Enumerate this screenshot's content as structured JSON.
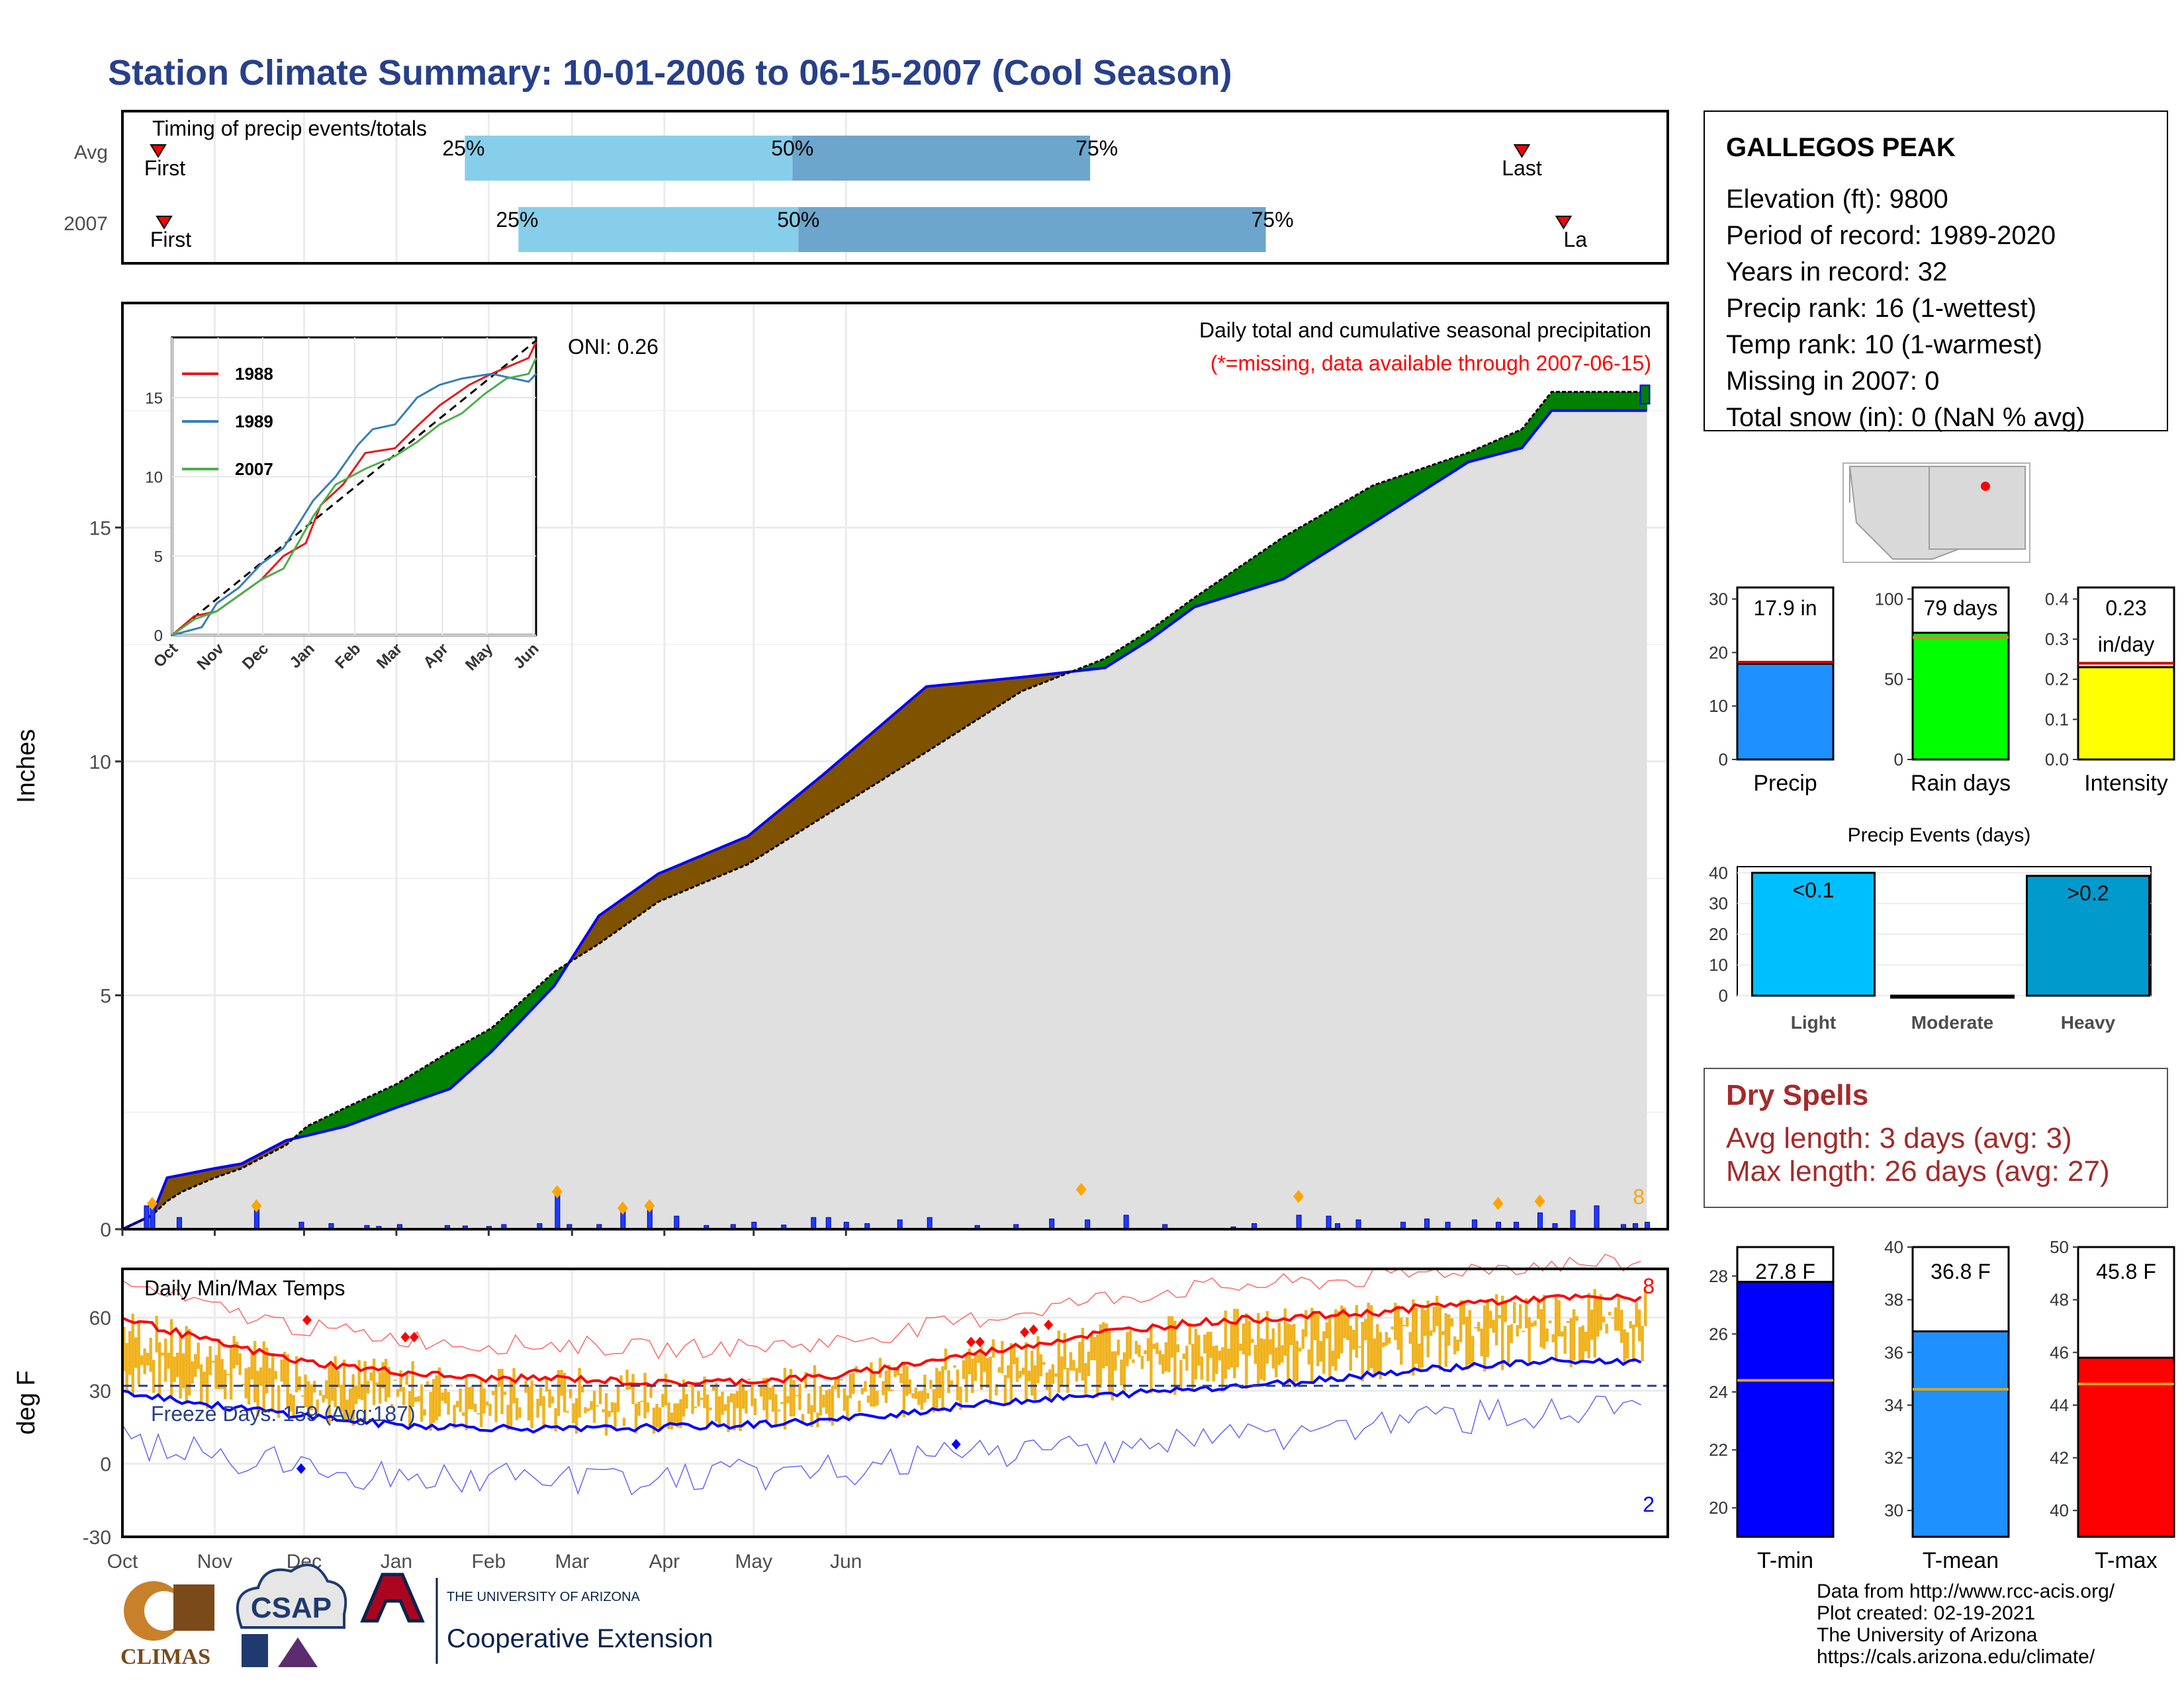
{
  "page": {
    "title": "Station Climate Summary: 10-01-2006 to 06-15-2007 (Cool Season)"
  },
  "timing": {
    "label": "Timing of precip events/totals",
    "rows": [
      {
        "name": "Avg",
        "first": "First",
        "last": "Last",
        "p25": "25%",
        "p50": "50%",
        "p75": "75%",
        "p25_day": 115,
        "p50_day": 225,
        "p75_day": 325,
        "first_day": 12,
        "last_day": 470
      },
      {
        "name": "2007",
        "first": "First",
        "last": "La",
        "p25": "25%",
        "p50": "50%",
        "p75": "75%",
        "p25_day": 133,
        "p50_day": 227,
        "p75_day": 384,
        "first_day": 14,
        "last_day": 484
      }
    ]
  },
  "months": [
    "Oct",
    "Nov",
    "Dec",
    "Jan",
    "Feb",
    "Mar",
    "Apr",
    "May",
    "Jun"
  ],
  "main": {
    "ylabel": "Inches",
    "caption1": "Daily total and cumulative seasonal precipitation",
    "caption2": "(*=missing, data available through 2007-06-15)",
    "oni": "ONI: 0.26",
    "extreme_count": "8",
    "yticks": [
      "0",
      "5",
      "10",
      "15"
    ]
  },
  "inset": {
    "months": [
      "Oct",
      "Nov",
      "Dec",
      "Jan",
      "Feb",
      "Mar",
      "Apr",
      "May",
      "Jun"
    ],
    "yticks": [
      "0",
      "5",
      "10",
      "15"
    ],
    "legend": [
      {
        "name": "1988",
        "color": "#e41a1c"
      },
      {
        "name": "1989",
        "color": "#377eb8"
      },
      {
        "name": "2007",
        "color": "#4daf4a"
      }
    ]
  },
  "temps": {
    "title": "Daily Min/Max Temps",
    "ylabel": "deg F",
    "freeze": "Freeze Days: 159 (Avg:187)",
    "hot_count": "8",
    "cold_count": "2",
    "yticks": [
      "-30",
      "0",
      "30",
      "60"
    ]
  },
  "station": {
    "name": "GALLEGOS PEAK",
    "lines": [
      "Elevation (ft): 9800",
      "Period of record: 1989-2020",
      "Years in record: 32",
      "Precip rank: 16 (1-wettest)",
      "Temp rank: 10 (1-warmest)",
      "Missing in 2007: 0",
      "Total snow (in): 0 (NaN % avg)"
    ]
  },
  "summary_bars": [
    {
      "label": "Precip",
      "value_text": "17.9 in",
      "value": 17.9,
      "avg": 18.2,
      "max": 30,
      "color": "#1e90ff",
      "yticks": [
        "0",
        "10",
        "20",
        "30"
      ]
    },
    {
      "label": "Rain days",
      "value_text": "79 days",
      "value": 79,
      "avg": 76,
      "max": 100,
      "color": "#00ff00",
      "yticks": [
        "0",
        "50",
        "100"
      ]
    },
    {
      "label": "Intensity",
      "value_text": "0.23",
      "value_text2": "in/day",
      "value": 0.23,
      "avg": 0.24,
      "max": 0.4,
      "color": "#ffff00",
      "yticks": [
        "0.0",
        "0.1",
        "0.2",
        "0.3",
        "0.4"
      ]
    }
  ],
  "events": {
    "title": "Precip Events (days)",
    "yticks": [
      "0",
      "10",
      "20",
      "30",
      "40"
    ],
    "bars": [
      {
        "label": "Light",
        "value_text": "<0.1",
        "value": 40,
        "color": "#00bfff"
      },
      {
        "label": "Moderate",
        "value_text": "",
        "value": 0,
        "color": "#1e90ff"
      },
      {
        "label": "Heavy",
        "value_text": ">0.2",
        "value": 39,
        "color": "#009acd"
      }
    ]
  },
  "dry": {
    "title": "Dry Spells",
    "avg": "Avg length: 3 days (avg: 3)",
    "max": "Max length: 26 days (avg: 27)"
  },
  "temp_bars": [
    {
      "label": "T-min",
      "value_text": "27.8 F",
      "value": 27.8,
      "avg": 24.4,
      "min": 19,
      "max": 29,
      "color": "#0000ff",
      "yticks": [
        "20",
        "22",
        "24",
        "26",
        "28"
      ]
    },
    {
      "label": "T-mean",
      "value_text": "36.8 F",
      "value": 36.8,
      "avg": 34.6,
      "min": 29,
      "max": 40,
      "color": "#1e90ff",
      "yticks": [
        "30",
        "32",
        "34",
        "36",
        "38",
        "40"
      ]
    },
    {
      "label": "T-max",
      "value_text": "45.8 F",
      "value": 45.8,
      "avg": 44.8,
      "min": 39,
      "max": 50,
      "color": "#ff0000",
      "yticks": [
        "40",
        "42",
        "44",
        "46",
        "48",
        "50"
      ]
    }
  ],
  "footer": {
    "lines": [
      "Data from http://www.rcc-acis.org/",
      "Plot created: 02-19-2021",
      "The University of Arizona",
      "https://cals.arizona.edu/climate/"
    ],
    "climas": "CLIMAS",
    "csap": "CSAP",
    "ua_small": "THE UNIVERSITY OF ARIZONA",
    "ua_big": "Cooperative Extension"
  },
  "chart_data": {
    "type": "area",
    "title": "Daily total and cumulative seasonal precipitation",
    "ylabel": "Inches",
    "ylim": [
      0,
      19.8
    ],
    "x_unit": "days since 2006-10-01",
    "cumulative_2007": [
      [
        0,
        0
      ],
      [
        10,
        0.3
      ],
      [
        15,
        0.6
      ],
      [
        20,
        0.8
      ],
      [
        31,
        1.1
      ],
      [
        40,
        1.3
      ],
      [
        55,
        1.8
      ],
      [
        62,
        2.2
      ],
      [
        75,
        2.6
      ],
      [
        92,
        3.1
      ],
      [
        110,
        3.8
      ],
      [
        124,
        4.3
      ],
      [
        145,
        5.5
      ],
      [
        160,
        6.1
      ],
      [
        180,
        7.0
      ],
      [
        210,
        7.8
      ],
      [
        235,
        8.8
      ],
      [
        270,
        10.2
      ],
      [
        302,
        11.5
      ],
      [
        330,
        12.2
      ],
      [
        345,
        12.8
      ],
      [
        360,
        13.5
      ],
      [
        390,
        14.8
      ],
      [
        420,
        15.9
      ],
      [
        452,
        16.6
      ],
      [
        470,
        17.1
      ],
      [
        480,
        17.9
      ]
    ],
    "cumulative_avg": [
      [
        0,
        0
      ],
      [
        10,
        0.3
      ],
      [
        15,
        1.1
      ],
      [
        31,
        1.3
      ],
      [
        40,
        1.4
      ],
      [
        55,
        1.9
      ],
      [
        62,
        2.0
      ],
      [
        75,
        2.2
      ],
      [
        92,
        2.6
      ],
      [
        110,
        3.0
      ],
      [
        124,
        3.8
      ],
      [
        145,
        5.2
      ],
      [
        160,
        6.7
      ],
      [
        180,
        7.6
      ],
      [
        210,
        8.4
      ],
      [
        235,
        9.7
      ],
      [
        270,
        11.6
      ],
      [
        302,
        11.8
      ],
      [
        330,
        12.0
      ],
      [
        345,
        12.6
      ],
      [
        360,
        13.3
      ],
      [
        390,
        13.9
      ],
      [
        420,
        15.1
      ],
      [
        452,
        16.4
      ],
      [
        470,
        16.7
      ],
      [
        480,
        17.5
      ]
    ],
    "daily_total_2007": [
      [
        8,
        0.5
      ],
      [
        10,
        0.6
      ],
      [
        19,
        0.25
      ],
      [
        45,
        0.55
      ],
      [
        60,
        0.15
      ],
      [
        70,
        0.12
      ],
      [
        82,
        0.08
      ],
      [
        86,
        0.06
      ],
      [
        93,
        0.1
      ],
      [
        109,
        0.08
      ],
      [
        115,
        0.07
      ],
      [
        123,
        0.06
      ],
      [
        128,
        0.1
      ],
      [
        140,
        0.12
      ],
      [
        146,
        0.8
      ],
      [
        150,
        0.1
      ],
      [
        160,
        0.1
      ],
      [
        168,
        0.45
      ],
      [
        177,
        0.55
      ],
      [
        186,
        0.28
      ],
      [
        196,
        0.08
      ],
      [
        205,
        0.1
      ],
      [
        212,
        0.15
      ],
      [
        222,
        0.09
      ],
      [
        232,
        0.25
      ],
      [
        237,
        0.25
      ],
      [
        243,
        0.15
      ],
      [
        250,
        0.12
      ],
      [
        261,
        0.2
      ],
      [
        271,
        0.25
      ],
      [
        287,
        0.08
      ],
      [
        300,
        0.1
      ],
      [
        312,
        0.22
      ],
      [
        324,
        0.2
      ],
      [
        337,
        0.3
      ],
      [
        350,
        0.1
      ],
      [
        373,
        0.05
      ],
      [
        380,
        0.12
      ],
      [
        395,
        0.3
      ],
      [
        405,
        0.28
      ],
      [
        408,
        0.12
      ],
      [
        415,
        0.2
      ],
      [
        430,
        0.15
      ],
      [
        438,
        0.22
      ],
      [
        445,
        0.15
      ],
      [
        454,
        0.2
      ],
      [
        462,
        0.15
      ],
      [
        468,
        0.15
      ],
      [
        476,
        0.35
      ],
      [
        481,
        0.12
      ],
      [
        487,
        0.4
      ],
      [
        495,
        0.5
      ],
      [
        504,
        0.1
      ],
      [
        508,
        0.12
      ],
      [
        512,
        0.15
      ]
    ],
    "inset_series": [
      {
        "name": "1988",
        "points": [
          [
            0,
            0
          ],
          [
            15,
            1.2
          ],
          [
            30,
            1.5
          ],
          [
            45,
            2.5
          ],
          [
            60,
            3.5
          ],
          [
            75,
            5.0
          ],
          [
            90,
            5.8
          ],
          [
            100,
            8.2
          ],
          [
            115,
            9.5
          ],
          [
            130,
            11.5
          ],
          [
            150,
            11.8
          ],
          [
            165,
            13.2
          ],
          [
            180,
            14.5
          ],
          [
            200,
            15.8
          ],
          [
            215,
            16.5
          ],
          [
            240,
            17.5
          ],
          [
            245,
            18.5
          ]
        ]
      },
      {
        "name": "1989",
        "points": [
          [
            0,
            0
          ],
          [
            20,
            0.5
          ],
          [
            30,
            2.0
          ],
          [
            45,
            3.0
          ],
          [
            60,
            4.5
          ],
          [
            75,
            5.5
          ],
          [
            95,
            8.5
          ],
          [
            110,
            10.0
          ],
          [
            125,
            12.0
          ],
          [
            135,
            13.0
          ],
          [
            150,
            13.3
          ],
          [
            165,
            15.0
          ],
          [
            180,
            15.8
          ],
          [
            195,
            16.2
          ],
          [
            215,
            16.5
          ],
          [
            240,
            16.0
          ],
          [
            245,
            16.5
          ]
        ]
      },
      {
        "name": "2007",
        "points": [
          [
            0,
            0
          ],
          [
            15,
            1.0
          ],
          [
            30,
            1.5
          ],
          [
            45,
            2.5
          ],
          [
            60,
            3.5
          ],
          [
            75,
            4.2
          ],
          [
            95,
            7.5
          ],
          [
            110,
            9.5
          ],
          [
            130,
            10.5
          ],
          [
            150,
            11.3
          ],
          [
            165,
            12.2
          ],
          [
            180,
            13.3
          ],
          [
            195,
            14.0
          ],
          [
            210,
            15.2
          ],
          [
            225,
            16.2
          ],
          [
            240,
            16.5
          ],
          [
            245,
            17.5
          ]
        ]
      }
    ],
    "temps": {
      "ylim": [
        -30,
        80
      ],
      "freeze_line": 32,
      "tmax_avg": [
        [
          0,
          60
        ],
        [
          30,
          50
        ],
        [
          60,
          42
        ],
        [
          90,
          38
        ],
        [
          120,
          35
        ],
        [
          150,
          35
        ],
        [
          180,
          33
        ],
        [
          210,
          34
        ],
        [
          240,
          36
        ],
        [
          270,
          42
        ],
        [
          300,
          48
        ],
        [
          330,
          54
        ],
        [
          360,
          58
        ],
        [
          390,
          60
        ],
        [
          420,
          62
        ],
        [
          450,
          66
        ],
        [
          480,
          68
        ]
      ],
      "tmin_avg": [
        [
          0,
          30
        ],
        [
          30,
          24
        ],
        [
          60,
          20
        ],
        [
          90,
          16
        ],
        [
          120,
          15
        ],
        [
          150,
          14
        ],
        [
          180,
          15
        ],
        [
          210,
          16
        ],
        [
          240,
          18
        ],
        [
          270,
          22
        ],
        [
          300,
          26
        ],
        [
          330,
          28
        ],
        [
          360,
          31
        ],
        [
          390,
          33
        ],
        [
          420,
          37
        ],
        [
          450,
          40
        ],
        [
          480,
          42
        ]
      ]
    }
  }
}
